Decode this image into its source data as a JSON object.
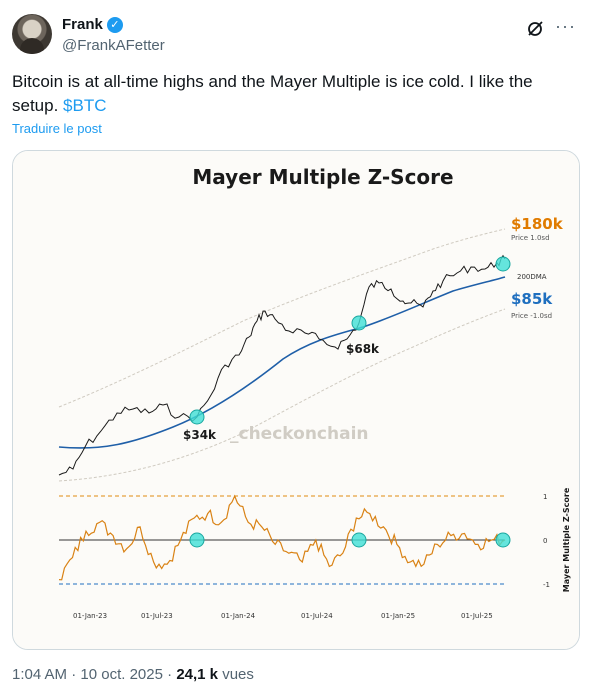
{
  "author": {
    "name": "Frank",
    "handle": "@FrankAFetter",
    "verified_icon": "verified-badge-icon",
    "avatar_icon": "profile-avatar"
  },
  "tweet": {
    "text_main": "Bitcoin is at all-time highs and the Mayer Multiple is ice cold. I like the setup.",
    "cashtag": "$BTC",
    "translate_label": "Traduire le post"
  },
  "footer": {
    "time": "1:04 AM",
    "separator": "·",
    "date": "10 oct. 2025",
    "views_count": "24,1 k",
    "views_label": "vues"
  },
  "colors": {
    "accent": "#1d9bf0",
    "price_line": "#1a1a1a",
    "dma_line": "#1f5fa8",
    "zscore_line": "#d98214",
    "highlight_circle": "#3ee0d6",
    "upper_band_label": "#e07b00",
    "lower_band_label": "#1f6fbf"
  },
  "chart_data": [
    {
      "type": "line",
      "title": "Mayer Multiple Z-Score",
      "watermark": "_checkonchain",
      "series": [
        {
          "name": "Price"
        },
        {
          "name": "200DMA"
        },
        {
          "name": "Price 1.0sd"
        },
        {
          "name": "Price -1.0sd"
        }
      ],
      "annotations": [
        {
          "label": "$34k",
          "date": "2023-10"
        },
        {
          "label": "$68k",
          "date": "2024-08"
        },
        {
          "label": "$180k",
          "sub": "Price 1.0sd"
        },
        {
          "label": "$85k",
          "sub": "Price -1.0sd"
        },
        {
          "label": "200DMA"
        }
      ]
    },
    {
      "type": "line",
      "ylabel": "Mayer Multiple Z-Score",
      "yticks": [
        "1",
        "0",
        "-1"
      ],
      "ylim": [
        -1,
        1
      ],
      "xticks": [
        "01-Jan-23",
        "01-Jul-23",
        "01-Jan-24",
        "01-Jul-24",
        "01-Jan-25",
        "01-Jul-25"
      ],
      "reference_lines": [
        1,
        0,
        -1
      ],
      "series": [
        {
          "name": "Z-Score",
          "x": [
            "2023-01",
            "2023-02",
            "2023-03",
            "2023-04",
            "2023-05",
            "2023-06",
            "2023-07",
            "2023-08",
            "2023-09",
            "2023-10",
            "2023-11",
            "2023-12",
            "2024-01",
            "2024-02",
            "2024-03",
            "2024-04",
            "2024-05",
            "2024-06",
            "2024-07",
            "2024-08",
            "2024-09",
            "2024-10",
            "2024-11",
            "2024-12",
            "2025-01",
            "2025-02",
            "2025-03",
            "2025-04",
            "2025-05",
            "2025-06",
            "2025-07",
            "2025-08",
            "2025-09",
            "2025-10"
          ],
          "values": [
            -0.9,
            -0.4,
            0.2,
            0.4,
            0.1,
            -0.2,
            0.3,
            -0.5,
            -0.55,
            0.0,
            0.5,
            0.6,
            0.4,
            1.0,
            0.4,
            0.3,
            -0.1,
            -0.3,
            -0.5,
            0.0,
            -0.6,
            -0.3,
            0.5,
            0.6,
            0.3,
            -0.1,
            -0.5,
            -0.55,
            -0.1,
            0.1,
            0.15,
            -0.1,
            0.0,
            0.0
          ]
        }
      ]
    }
  ]
}
